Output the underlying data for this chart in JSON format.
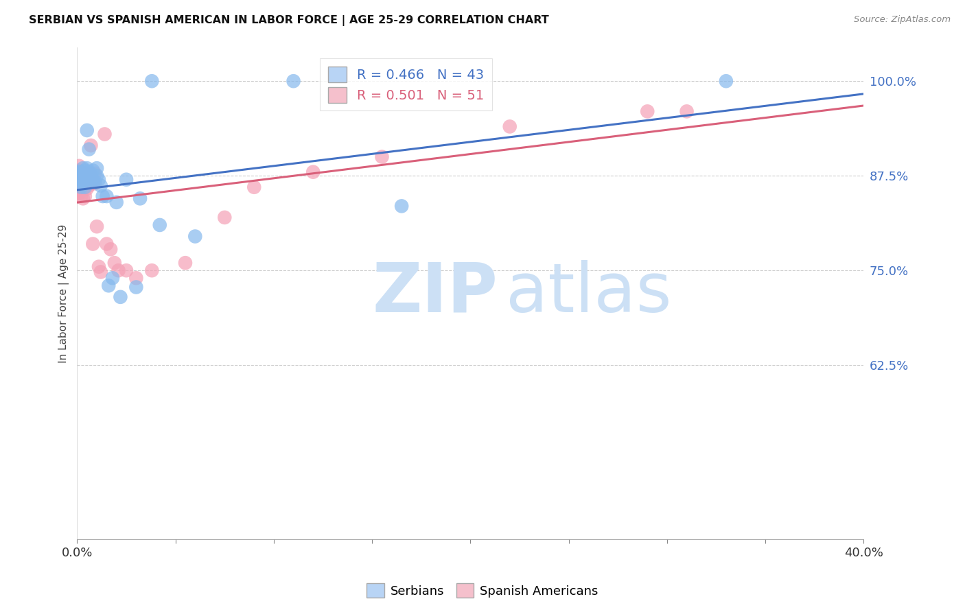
{
  "title": "SERBIAN VS SPANISH AMERICAN IN LABOR FORCE | AGE 25-29 CORRELATION CHART",
  "source": "Source: ZipAtlas.com",
  "ylabel": "In Labor Force | Age 25-29",
  "ytick_labels": [
    "100.0%",
    "87.5%",
    "75.0%",
    "62.5%"
  ],
  "ytick_values": [
    1.0,
    0.875,
    0.75,
    0.625
  ],
  "xmin": 0.0,
  "xmax": 0.4,
  "ymin": 0.395,
  "ymax": 1.045,
  "r_serbian": 0.466,
  "n_serbian": 43,
  "r_spanish": 0.501,
  "n_spanish": 51,
  "color_serbian": "#85b8ed",
  "color_spanish": "#f4a0b5",
  "line_color_serbian": "#4472c4",
  "line_color_spanish": "#d9607a",
  "legend_color_serbian": "#b8d4f5",
  "legend_color_spanish": "#f5c0cc",
  "watermark_zip": "ZIP",
  "watermark_atlas": "atlas",
  "watermark_color": "#cce0f5",
  "serbian_x": [
    0.001,
    0.001,
    0.001,
    0.001,
    0.002,
    0.002,
    0.002,
    0.002,
    0.003,
    0.003,
    0.003,
    0.004,
    0.004,
    0.004,
    0.005,
    0.005,
    0.005,
    0.006,
    0.006,
    0.007,
    0.007,
    0.008,
    0.008,
    0.009,
    0.01,
    0.01,
    0.011,
    0.012,
    0.013,
    0.015,
    0.016,
    0.018,
    0.02,
    0.022,
    0.025,
    0.03,
    0.032,
    0.038,
    0.042,
    0.06,
    0.11,
    0.165,
    0.33
  ],
  "serbian_y": [
    0.88,
    0.875,
    0.87,
    0.865,
    0.88,
    0.875,
    0.87,
    0.86,
    0.885,
    0.878,
    0.868,
    0.882,
    0.872,
    0.86,
    0.935,
    0.885,
    0.87,
    0.91,
    0.88,
    0.878,
    0.868,
    0.882,
    0.87,
    0.868,
    0.885,
    0.875,
    0.87,
    0.862,
    0.848,
    0.848,
    0.73,
    0.74,
    0.84,
    0.715,
    0.87,
    0.728,
    0.845,
    1.0,
    0.81,
    0.795,
    1.0,
    0.835,
    1.0
  ],
  "spanish_x": [
    0.001,
    0.001,
    0.001,
    0.001,
    0.001,
    0.001,
    0.001,
    0.002,
    0.002,
    0.002,
    0.002,
    0.002,
    0.003,
    0.003,
    0.003,
    0.003,
    0.003,
    0.004,
    0.004,
    0.004,
    0.005,
    0.005,
    0.005,
    0.005,
    0.006,
    0.006,
    0.007,
    0.007,
    0.008,
    0.008,
    0.009,
    0.009,
    0.01,
    0.011,
    0.012,
    0.014,
    0.015,
    0.017,
    0.019,
    0.021,
    0.025,
    0.03,
    0.038,
    0.055,
    0.075,
    0.09,
    0.12,
    0.155,
    0.22,
    0.29,
    0.31
  ],
  "spanish_y": [
    0.888,
    0.882,
    0.876,
    0.87,
    0.865,
    0.858,
    0.852,
    0.878,
    0.872,
    0.862,
    0.857,
    0.848,
    0.878,
    0.872,
    0.866,
    0.858,
    0.845,
    0.878,
    0.87,
    0.848,
    0.878,
    0.872,
    0.865,
    0.858,
    0.878,
    0.862,
    0.915,
    0.875,
    0.785,
    0.868,
    0.878,
    0.865,
    0.808,
    0.755,
    0.748,
    0.93,
    0.785,
    0.778,
    0.76,
    0.75,
    0.75,
    0.74,
    0.75,
    0.76,
    0.82,
    0.86,
    0.88,
    0.9,
    0.94,
    0.96,
    0.96
  ]
}
